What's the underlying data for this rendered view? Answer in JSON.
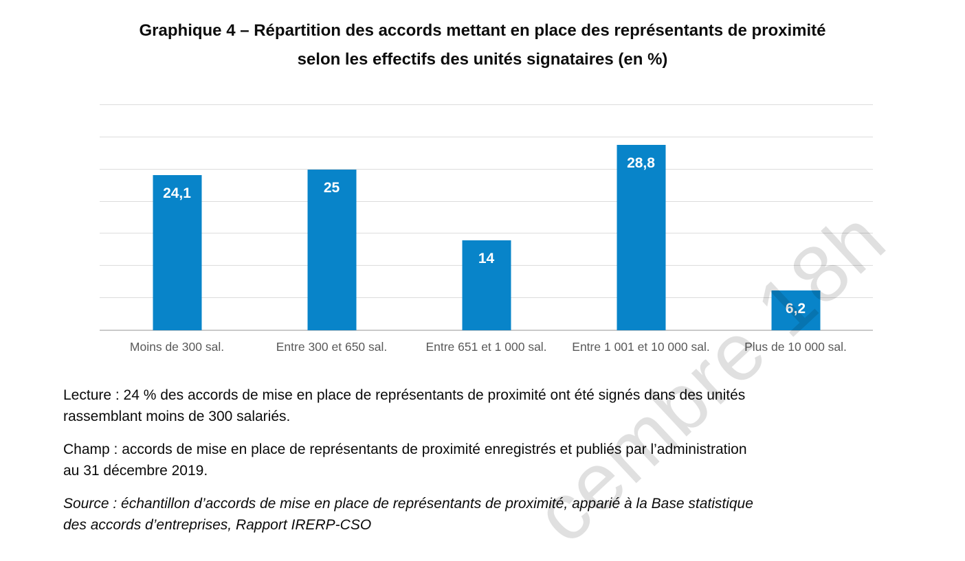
{
  "title": {
    "line1": "Graphique 4 – Répartition des accords mettant en place des représentants de proximité",
    "line2": "selon les effectifs des unités signataires (en %)"
  },
  "chart_data": {
    "type": "bar",
    "title": "Graphique 4 – Répartition des accords mettant en place des représentants de proximité selon les effectifs des unités signataires (en %)",
    "categories": [
      "Moins de 300 sal.",
      "Entre 300 et 650 sal.",
      "Entre 651 et 1 000 sal.",
      "Entre 1 001 et 10 000 sal.",
      "Plus de 10 000 sal."
    ],
    "values": [
      24.1,
      25,
      14,
      28.8,
      6.2
    ],
    "value_labels": [
      "24,1",
      "25",
      "14",
      "28,8",
      "6,2"
    ],
    "unit": "%",
    "xlabel": "",
    "ylabel": "",
    "ylim": [
      0,
      35
    ],
    "gridline_step": 5,
    "grid": true,
    "legend": "none",
    "colors": {
      "bar": "#0884c9",
      "value_label": "#ffffff",
      "gridline": "#dcdcdc",
      "axis_line": "#c9c9c9",
      "category_label": "#595959"
    }
  },
  "notes": {
    "lecture": {
      "line1": "Lecture : 24 % des accords de mise en place de représentants de proximité ont été signés dans des unités",
      "line2": "rassemblant moins de 300 salariés."
    },
    "champ": {
      "line1": "Champ : accords de mise en place de représentants de proximité enregistrés et publiés par l’administration",
      "line2": "au 31 décembre 2019."
    },
    "source": {
      "line1": "Source : échantillon d’accords de mise en place de représentants de proximité, apparié à la Base statistique",
      "line2": "des accords d’entreprises, Rapport IRERP-CSO"
    }
  },
  "watermark": {
    "text": "cembre 18h"
  }
}
